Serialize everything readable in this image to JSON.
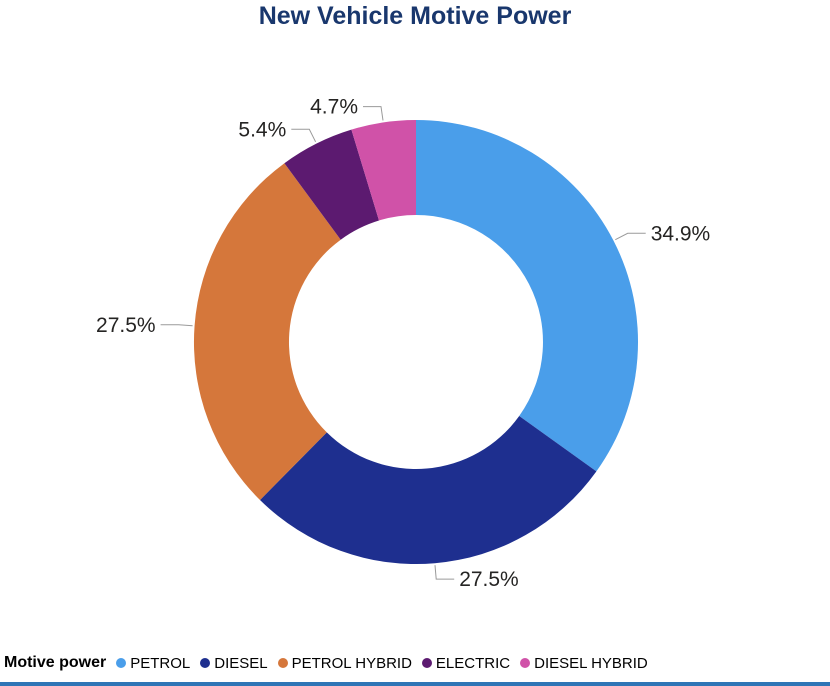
{
  "title": "New Vehicle Motive Power",
  "legend": {
    "title": "Motive power"
  },
  "chart_data": {
    "type": "pie",
    "subtype": "donut",
    "title": "New Vehicle Motive Power",
    "categories": [
      "PETROL",
      "DIESEL",
      "PETROL HYBRID",
      "ELECTRIC",
      "DIESEL HYBRID"
    ],
    "values": [
      34.9,
      27.5,
      27.5,
      5.4,
      4.7
    ],
    "labels": [
      "34.9%",
      "27.5%",
      "27.5%",
      "5.4%",
      "4.7%"
    ],
    "colors": [
      "#4A9EEA",
      "#1E2F8F",
      "#D5773B",
      "#5C1A70",
      "#D052A8"
    ],
    "start_angle_deg": 0,
    "direction": "clockwise",
    "legend_position": "bottom",
    "legend_title": "Motive power"
  },
  "colors": {
    "title": "#19376D",
    "label_text": "#252423",
    "leader_line": "#9A9A9A",
    "legend_text": "#000000",
    "bottom_bar": "#2E75B6",
    "background": "#FFFFFF"
  }
}
